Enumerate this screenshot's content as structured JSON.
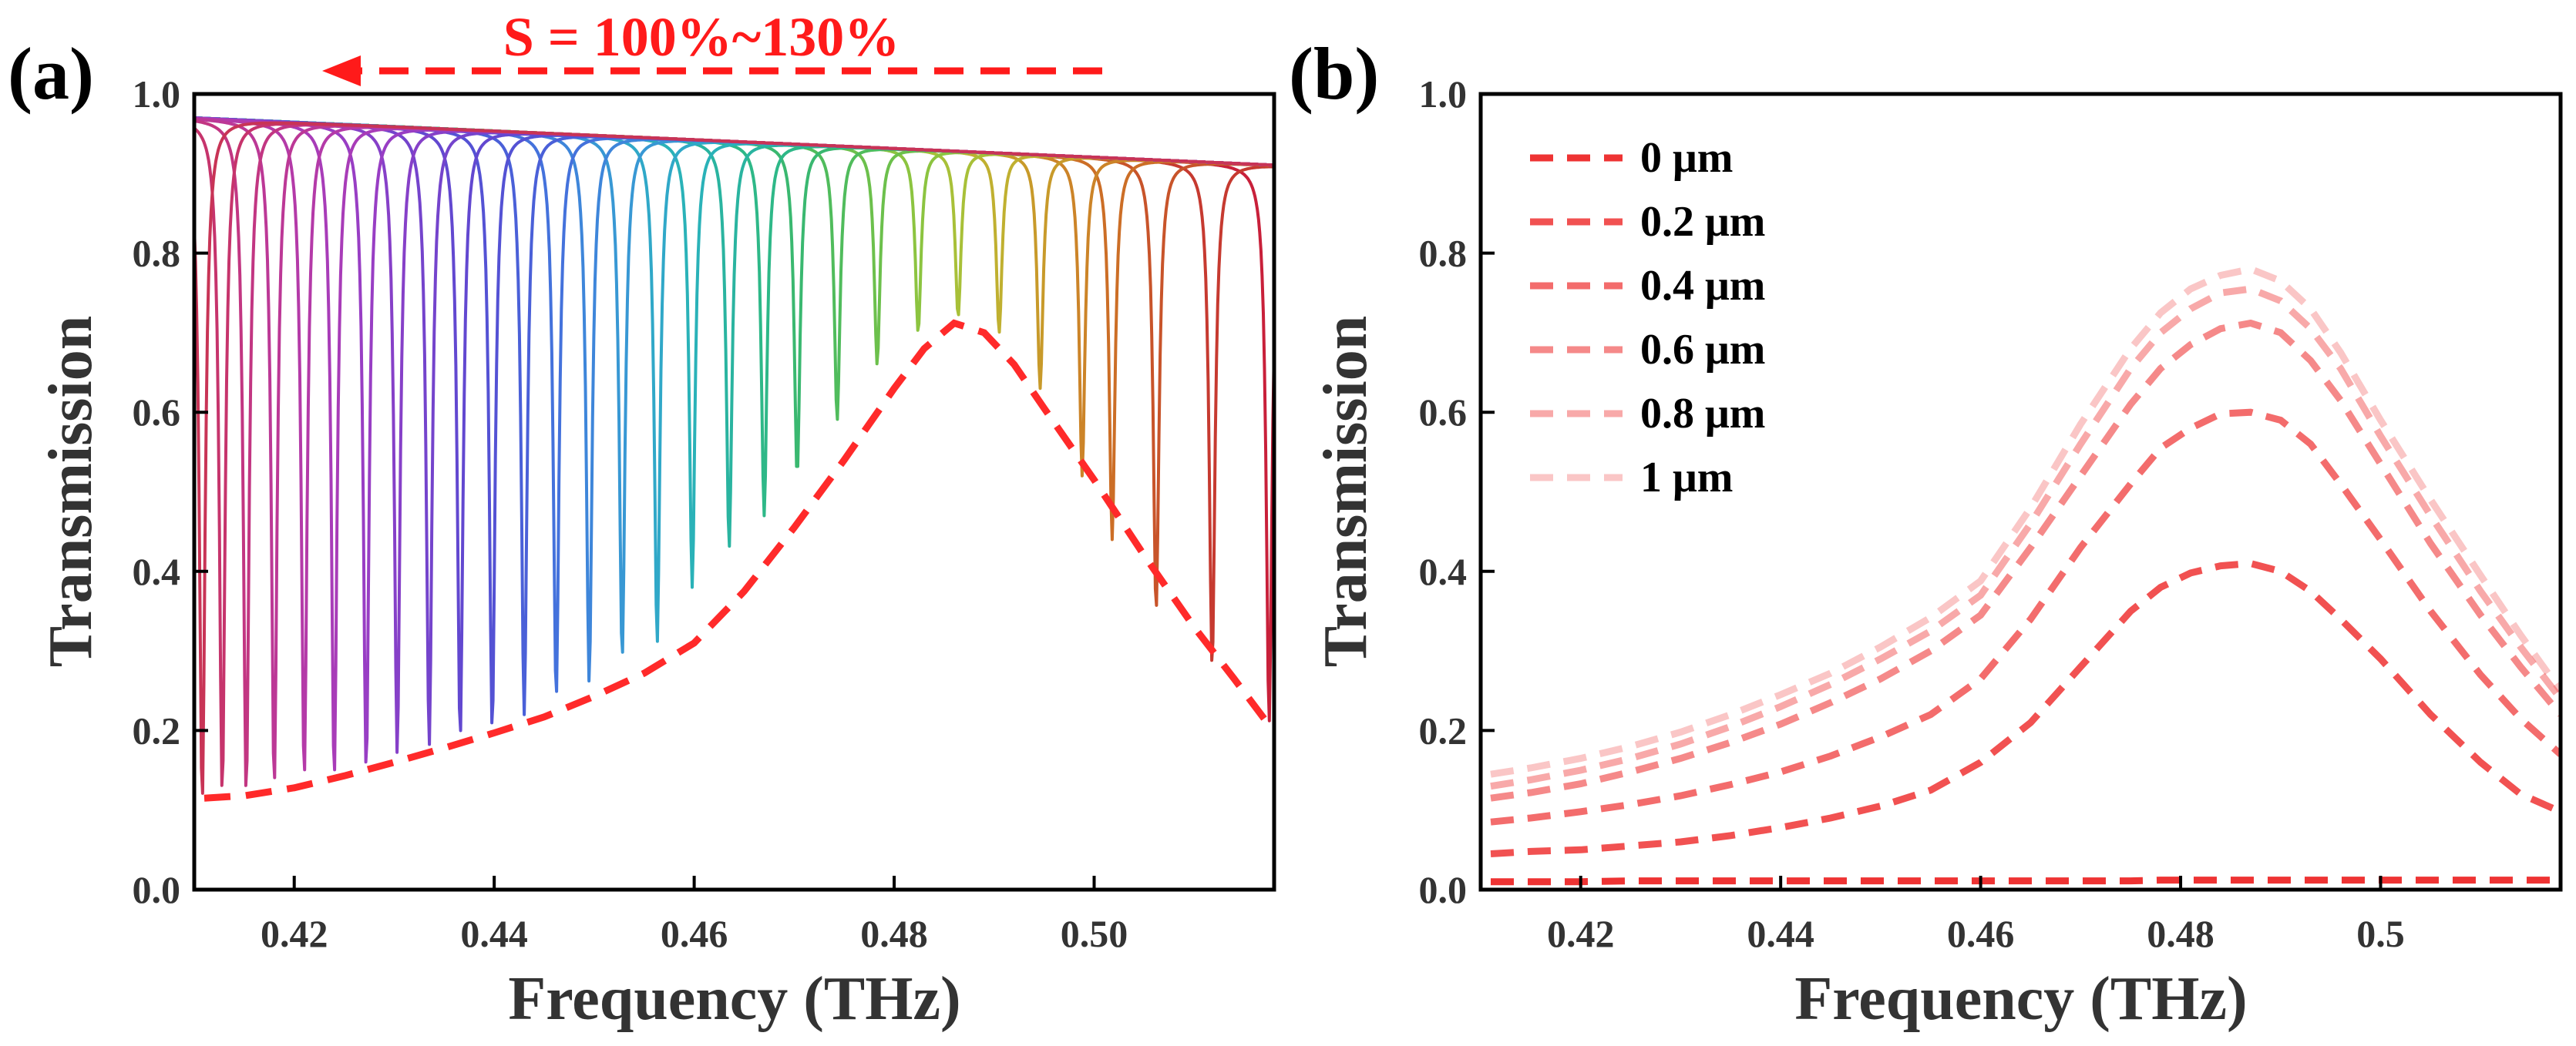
{
  "chart_data": [
    {
      "panel_label": "(a)",
      "type": "line",
      "xlabel": "Frequency (THz)",
      "ylabel": "Transmission",
      "xlim": [
        0.41,
        0.518
      ],
      "ylim": [
        0.0,
        1.0
      ],
      "x_ticks": [
        0.42,
        0.44,
        0.46,
        0.48,
        0.5
      ],
      "x_tick_labels": [
        "0.42",
        "0.44",
        "0.46",
        "0.48",
        "0.50"
      ],
      "y_ticks": [
        0.0,
        0.2,
        0.4,
        0.6,
        0.8,
        1.0
      ],
      "y_tick_labels": [
        "0.0",
        "0.2",
        "0.4",
        "0.6",
        "0.8",
        "1.0"
      ],
      "annotation": "S = 100%~130%",
      "annotation_color": "#ff1a1a",
      "annotation_arrow": "points left",
      "resonance_series_description": "Lorentzian transmission dips, one per period scaling S from 100% (right) to 130% (left)",
      "resonances": [
        {
          "f0": 0.5175,
          "depth": 0.21,
          "color": "#c8203a"
        },
        {
          "f0": 0.5118,
          "depth": 0.28,
          "color": "#c63a30"
        },
        {
          "f0": 0.5062,
          "depth": 0.35,
          "color": "#c8542a"
        },
        {
          "f0": 0.5018,
          "depth": 0.44,
          "color": "#cc6e26"
        },
        {
          "f0": 0.4988,
          "depth": 0.52,
          "color": "#cc8428"
        },
        {
          "f0": 0.4946,
          "depth": 0.63,
          "color": "#c89a2a"
        },
        {
          "f0": 0.4905,
          "depth": 0.7,
          "color": "#c0b030"
        },
        {
          "f0": 0.4864,
          "depth": 0.72,
          "color": "#a8c038"
        },
        {
          "f0": 0.4824,
          "depth": 0.7,
          "color": "#8cc440"
        },
        {
          "f0": 0.4783,
          "depth": 0.66,
          "color": "#6cc04c"
        },
        {
          "f0": 0.4743,
          "depth": 0.59,
          "color": "#50bc5c"
        },
        {
          "f0": 0.4703,
          "depth": 0.52,
          "color": "#3ab870"
        },
        {
          "f0": 0.467,
          "depth": 0.47,
          "color": "#2eb888"
        },
        {
          "f0": 0.4635,
          "depth": 0.43,
          "color": "#2ab4a0"
        },
        {
          "f0": 0.4598,
          "depth": 0.38,
          "color": "#2ab2b8"
        },
        {
          "f0": 0.4563,
          "depth": 0.31,
          "color": "#30a8c8"
        },
        {
          "f0": 0.4528,
          "depth": 0.29,
          "color": "#3898d4"
        },
        {
          "f0": 0.4495,
          "depth": 0.26,
          "color": "#3e86da"
        },
        {
          "f0": 0.4462,
          "depth": 0.24,
          "color": "#4472dc"
        },
        {
          "f0": 0.443,
          "depth": 0.22,
          "color": "#4a60d8"
        },
        {
          "f0": 0.4398,
          "depth": 0.2,
          "color": "#5452d4"
        },
        {
          "f0": 0.4366,
          "depth": 0.19,
          "color": "#6248d0"
        },
        {
          "f0": 0.4335,
          "depth": 0.18,
          "color": "#7444cc"
        },
        {
          "f0": 0.4303,
          "depth": 0.17,
          "color": "#8640c8"
        },
        {
          "f0": 0.4272,
          "depth": 0.15,
          "color": "#983ec4"
        },
        {
          "f0": 0.424,
          "depth": 0.14,
          "color": "#a83cb8"
        },
        {
          "f0": 0.421,
          "depth": 0.14,
          "color": "#b43aa8"
        },
        {
          "f0": 0.418,
          "depth": 0.13,
          "color": "#bc3896"
        },
        {
          "f0": 0.4152,
          "depth": 0.12,
          "color": "#c23682"
        },
        {
          "f0": 0.4128,
          "depth": 0.12,
          "color": "#c6346c"
        },
        {
          "f0": 0.4108,
          "depth": 0.11,
          "color": "#c83456"
        }
      ],
      "envelope": {
        "name": "dip minima envelope",
        "style": "dashed",
        "color": "#ff2a2a",
        "x": [
          0.411,
          0.415,
          0.42,
          0.425,
          0.43,
          0.435,
          0.44,
          0.445,
          0.45,
          0.455,
          0.46,
          0.465,
          0.47,
          0.475,
          0.48,
          0.483,
          0.486,
          0.489,
          0.492,
          0.495,
          0.5,
          0.505,
          0.51,
          0.514,
          0.517
        ],
        "y": [
          0.115,
          0.118,
          0.128,
          0.143,
          0.16,
          0.178,
          0.197,
          0.217,
          0.243,
          0.272,
          0.31,
          0.375,
          0.455,
          0.54,
          0.63,
          0.68,
          0.712,
          0.7,
          0.66,
          0.605,
          0.515,
          0.42,
          0.33,
          0.265,
          0.215
        ]
      }
    },
    {
      "panel_label": "(b)",
      "type": "line",
      "xlabel": "Frequency (THz)",
      "ylabel": "Transmission",
      "xlim": [
        0.41,
        0.518
      ],
      "ylim": [
        0.0,
        1.0
      ],
      "x_ticks": [
        0.42,
        0.44,
        0.46,
        0.48,
        0.5
      ],
      "x_tick_labels": [
        "0.42",
        "0.44",
        "0.46",
        "0.48",
        "0.5"
      ],
      "y_ticks": [
        0.0,
        0.2,
        0.4,
        0.6,
        0.8,
        1.0
      ],
      "y_tick_labels": [
        "0.0",
        "0.2",
        "0.4",
        "0.6",
        "0.8",
        "1.0"
      ],
      "legend_location": "top-left",
      "x": [
        0.411,
        0.415,
        0.42,
        0.425,
        0.43,
        0.435,
        0.44,
        0.445,
        0.45,
        0.455,
        0.46,
        0.465,
        0.47,
        0.475,
        0.478,
        0.481,
        0.484,
        0.487,
        0.49,
        0.493,
        0.496,
        0.5,
        0.505,
        0.51,
        0.514,
        0.518
      ],
      "series": [
        {
          "name": "0 μm",
          "color": "#ee3333",
          "opacity": 1.0,
          "values": [
            0.01,
            0.01,
            0.01,
            0.011,
            0.011,
            0.011,
            0.011,
            0.011,
            0.011,
            0.011,
            0.011,
            0.011,
            0.011,
            0.011,
            0.012,
            0.012,
            0.012,
            0.012,
            0.012,
            0.012,
            0.012,
            0.012,
            0.012,
            0.012,
            0.012,
            0.012
          ]
        },
        {
          "name": "0.2 μm",
          "color": "#ee3333",
          "opacity": 0.85,
          "values": [
            0.045,
            0.048,
            0.05,
            0.055,
            0.06,
            0.068,
            0.078,
            0.09,
            0.105,
            0.125,
            0.16,
            0.21,
            0.28,
            0.35,
            0.38,
            0.398,
            0.407,
            0.41,
            0.4,
            0.375,
            0.34,
            0.29,
            0.22,
            0.16,
            0.12,
            0.098
          ]
        },
        {
          "name": "0.4 μm",
          "color": "#ee3333",
          "opacity": 0.72,
          "values": [
            0.085,
            0.09,
            0.098,
            0.107,
            0.118,
            0.132,
            0.148,
            0.168,
            0.192,
            0.22,
            0.265,
            0.34,
            0.43,
            0.51,
            0.555,
            0.58,
            0.598,
            0.6,
            0.59,
            0.56,
            0.51,
            0.44,
            0.35,
            0.27,
            0.215,
            0.17
          ]
        },
        {
          "name": "0.6 μm",
          "color": "#ee3333",
          "opacity": 0.58,
          "values": [
            0.115,
            0.122,
            0.133,
            0.148,
            0.165,
            0.185,
            0.208,
            0.235,
            0.265,
            0.3,
            0.345,
            0.43,
            0.52,
            0.61,
            0.655,
            0.685,
            0.705,
            0.712,
            0.7,
            0.665,
            0.615,
            0.535,
            0.435,
            0.345,
            0.28,
            0.22
          ]
        },
        {
          "name": "0.8 μm",
          "color": "#ee3333",
          "opacity": 0.42,
          "values": [
            0.13,
            0.138,
            0.15,
            0.165,
            0.183,
            0.205,
            0.23,
            0.258,
            0.29,
            0.325,
            0.37,
            0.46,
            0.56,
            0.655,
            0.7,
            0.73,
            0.75,
            0.755,
            0.74,
            0.705,
            0.655,
            0.57,
            0.47,
            0.375,
            0.305,
            0.24
          ]
        },
        {
          "name": "1 μm",
          "color": "#ee3333",
          "opacity": 0.28,
          "values": [
            0.145,
            0.153,
            0.165,
            0.18,
            0.198,
            0.22,
            0.245,
            0.272,
            0.305,
            0.342,
            0.388,
            0.48,
            0.585,
            0.68,
            0.725,
            0.755,
            0.772,
            0.78,
            0.765,
            0.73,
            0.675,
            0.59,
            0.49,
            0.395,
            0.32,
            0.25
          ]
        }
      ]
    }
  ]
}
